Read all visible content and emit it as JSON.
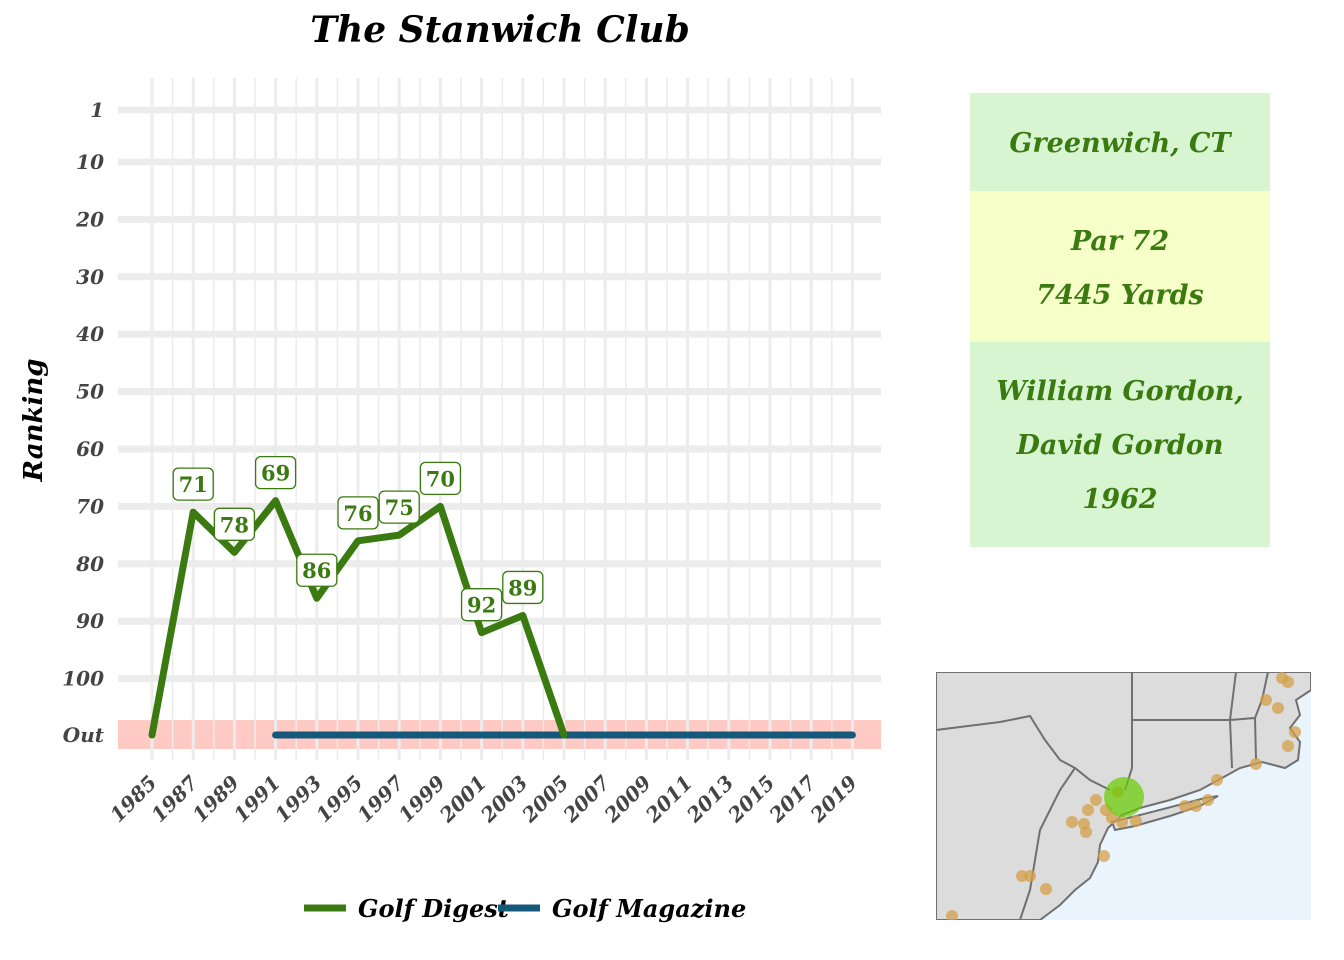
{
  "chart_data": {
    "type": "line",
    "title": "The Stanwich Club",
    "ylabel": "Ranking",
    "y_ticks": [
      "1",
      "10",
      "20",
      "30",
      "40",
      "50",
      "60",
      "70",
      "80",
      "90",
      "100",
      "Out"
    ],
    "x_ticks": [
      "1985",
      "1987",
      "1989",
      "1991",
      "1993",
      "1995",
      "1997",
      "1999",
      "2001",
      "2003",
      "2005",
      "2007",
      "2009",
      "2011",
      "2013",
      "2015",
      "2017",
      "2019"
    ],
    "out_label": "Out",
    "series": [
      {
        "name": "Golf Digest",
        "color": "#3a7a10",
        "points": [
          {
            "x": 1985,
            "y": "Out"
          },
          {
            "x": 1987,
            "y": 71
          },
          {
            "x": 1989,
            "y": 78
          },
          {
            "x": 1991,
            "y": 69
          },
          {
            "x": 1993,
            "y": 86
          },
          {
            "x": 1995,
            "y": 76
          },
          {
            "x": 1997,
            "y": 75
          },
          {
            "x": 1999,
            "y": 70
          },
          {
            "x": 2001,
            "y": 92
          },
          {
            "x": 2003,
            "y": 89
          },
          {
            "x": 2005,
            "y": "Out"
          }
        ],
        "labels": [
          {
            "x": 1987,
            "y": 71,
            "text": "71"
          },
          {
            "x": 1989,
            "y": 78,
            "text": "78"
          },
          {
            "x": 1991,
            "y": 69,
            "text": "69"
          },
          {
            "x": 1993,
            "y": 86,
            "text": "86"
          },
          {
            "x": 1995,
            "y": 76,
            "text": "76"
          },
          {
            "x": 1997,
            "y": 75,
            "text": "75"
          },
          {
            "x": 1999,
            "y": 70,
            "text": "70"
          },
          {
            "x": 2001,
            "y": 92,
            "text": "92"
          },
          {
            "x": 2003,
            "y": 89,
            "text": "89"
          }
        ]
      },
      {
        "name": "Golf Magazine",
        "color": "#14587a",
        "points": [
          {
            "x": 1991,
            "y": "Out"
          },
          {
            "x": 2019,
            "y": "Out"
          }
        ]
      }
    ],
    "legend_position": "bottom",
    "grid": true
  },
  "info_panel": {
    "location": "Greenwich, CT",
    "par": "Par 72",
    "yards": "7445 Yards",
    "architect_line1": "William Gordon,",
    "architect_line2": "David Gordon",
    "year": "1962",
    "colors": {
      "green_bg": "#d8f5d2",
      "yellow_bg": "#f7ffc8",
      "text": "#3a7a10"
    }
  },
  "map": {
    "land_color": "#dcdcdc",
    "water_color": "#eaf4fd",
    "marker_color": "#d4a04a",
    "highlight_color": "#66cc00"
  }
}
